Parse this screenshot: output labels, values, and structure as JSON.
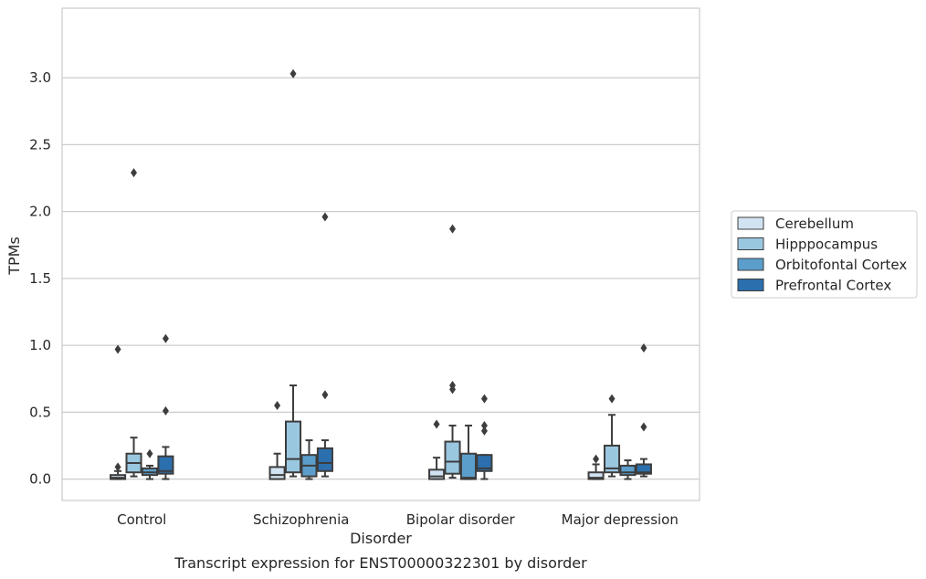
{
  "chart_data": {
    "type": "box",
    "xlabel": "Disorder",
    "ylabel": "TPMs",
    "caption": "Transcript expression for ENST00000322301 by disorder",
    "ylim": [
      -0.16,
      3.52
    ],
    "yticks": [
      0.0,
      0.5,
      1.0,
      1.5,
      2.0,
      2.5,
      3.0
    ],
    "ytick_labels": [
      "0.0",
      "0.5",
      "1.0",
      "1.5",
      "2.0",
      "2.5",
      "3.0"
    ],
    "grid": "horizontal",
    "legend_position": "right",
    "categories": [
      "Control",
      "Schizophrenia",
      "Bipolar disorder",
      "Major depression"
    ],
    "series": [
      {
        "name": "Cerebellum",
        "color": "#d1e2f2",
        "boxes": [
          {
            "whislo": 0.0,
            "q1": 0.0,
            "med": 0.01,
            "q3": 0.03,
            "whishi": 0.06,
            "fliers": [
              0.97,
              0.09
            ]
          },
          {
            "whislo": 0.0,
            "q1": 0.0,
            "med": 0.03,
            "q3": 0.09,
            "whishi": 0.19,
            "fliers": [
              0.55
            ]
          },
          {
            "whislo": 0.0,
            "q1": 0.0,
            "med": 0.02,
            "q3": 0.07,
            "whishi": 0.16,
            "fliers": [
              0.41
            ]
          },
          {
            "whislo": 0.0,
            "q1": 0.0,
            "med": 0.01,
            "q3": 0.05,
            "whishi": 0.11,
            "fliers": [
              0.15
            ]
          }
        ]
      },
      {
        "name": "Hipppocampus",
        "color": "#9ac7e0",
        "boxes": [
          {
            "whislo": 0.02,
            "q1": 0.05,
            "med": 0.12,
            "q3": 0.19,
            "whishi": 0.31,
            "fliers": [
              2.29
            ]
          },
          {
            "whislo": 0.02,
            "q1": 0.05,
            "med": 0.15,
            "q3": 0.43,
            "whishi": 0.7,
            "fliers": [
              3.03
            ]
          },
          {
            "whislo": 0.01,
            "q1": 0.04,
            "med": 0.13,
            "q3": 0.28,
            "whishi": 0.4,
            "fliers": [
              1.87,
              0.7,
              0.67
            ]
          },
          {
            "whislo": 0.02,
            "q1": 0.05,
            "med": 0.08,
            "q3": 0.25,
            "whishi": 0.48,
            "fliers": [
              0.6
            ]
          }
        ]
      },
      {
        "name": "Orbitofontal Cortex",
        "color": "#5b9ecb",
        "boxes": [
          {
            "whislo": 0.0,
            "q1": 0.03,
            "med": 0.05,
            "q3": 0.08,
            "whishi": 0.1,
            "fliers": [
              0.19
            ]
          },
          {
            "whislo": 0.0,
            "q1": 0.02,
            "med": 0.1,
            "q3": 0.18,
            "whishi": 0.29,
            "fliers": []
          },
          {
            "whislo": 0.0,
            "q1": 0.0,
            "med": 0.01,
            "q3": 0.19,
            "whishi": 0.4,
            "fliers": []
          },
          {
            "whislo": 0.0,
            "q1": 0.03,
            "med": 0.05,
            "q3": 0.1,
            "whishi": 0.14,
            "fliers": []
          }
        ]
      },
      {
        "name": "Prefrontal Cortex",
        "color": "#2c6fae",
        "boxes": [
          {
            "whislo": 0.0,
            "q1": 0.04,
            "med": 0.06,
            "q3": 0.17,
            "whishi": 0.24,
            "fliers": [
              1.05,
              0.51
            ]
          },
          {
            "whislo": 0.02,
            "q1": 0.06,
            "med": 0.12,
            "q3": 0.23,
            "whishi": 0.29,
            "fliers": [
              1.96,
              0.63
            ]
          },
          {
            "whislo": 0.0,
            "q1": 0.06,
            "med": 0.08,
            "q3": 0.18,
            "whishi": 0.18,
            "fliers": [
              0.6,
              0.4,
              0.36
            ]
          },
          {
            "whislo": 0.02,
            "q1": 0.04,
            "med": 0.05,
            "q3": 0.11,
            "whishi": 0.15,
            "fliers": [
              0.98,
              0.39
            ]
          }
        ]
      }
    ]
  }
}
